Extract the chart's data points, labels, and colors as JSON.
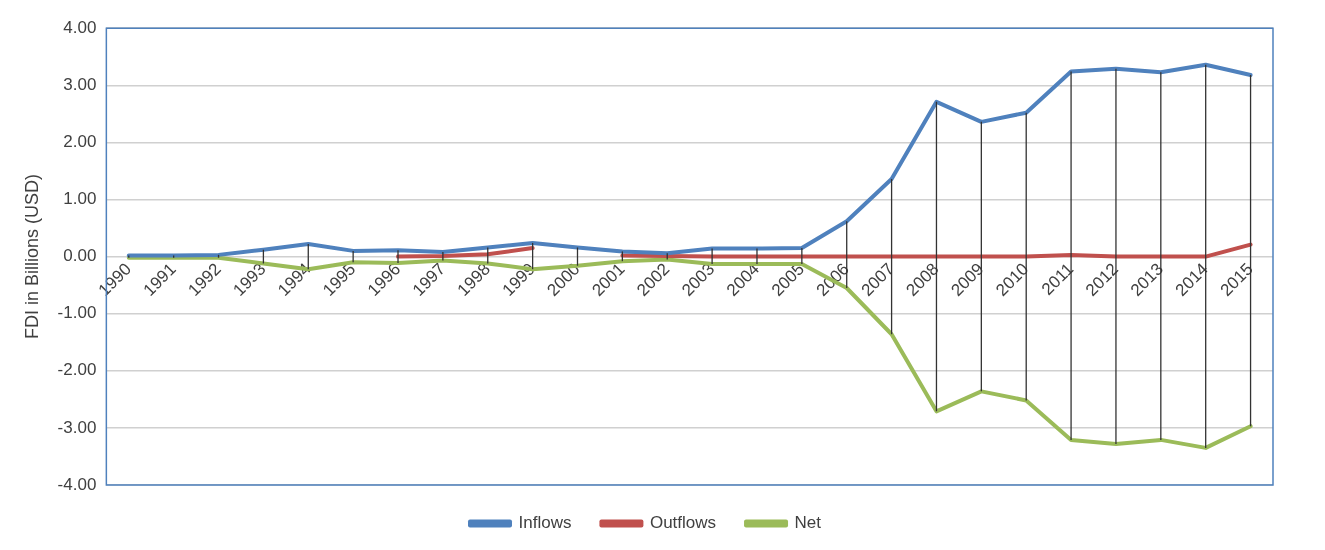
{
  "chart_data": {
    "type": "line",
    "ylabel": "FDI in Billions (USD)",
    "categories": [
      "1990",
      "1991",
      "1992",
      "1993",
      "1994",
      "1995",
      "1996",
      "1997",
      "1998",
      "1999",
      "2000",
      "2001",
      "2002",
      "2003",
      "2004",
      "2005",
      "2006",
      "2007",
      "2008",
      "2009",
      "2010",
      "2011",
      "2012",
      "2013",
      "2014",
      "2015"
    ],
    "series": [
      {
        "name": "Inflows",
        "color": "#4f81bd",
        "values": [
          0.02,
          0.02,
          0.03,
          0.12,
          0.22,
          0.1,
          0.11,
          0.08,
          0.16,
          0.24,
          0.16,
          0.09,
          0.06,
          0.14,
          0.14,
          0.15,
          0.62,
          1.36,
          2.71,
          2.36,
          2.52,
          3.24,
          3.29,
          3.23,
          3.36,
          3.18
        ]
      },
      {
        "name": "Outflows",
        "color": "#c0504d",
        "values": [
          null,
          null,
          null,
          null,
          null,
          null,
          0.0,
          0.01,
          0.04,
          0.15,
          null,
          0.02,
          0.01,
          0.0,
          0.0,
          0.0,
          0.0,
          0.0,
          0.0,
          0.0,
          0.0,
          0.03,
          0.0,
          0.0,
          0.0,
          0.21
        ]
      },
      {
        "name": "Net",
        "color": "#9bbb59",
        "values": [
          -0.02,
          -0.02,
          -0.02,
          -0.12,
          -0.22,
          -0.1,
          -0.11,
          -0.07,
          -0.12,
          -0.22,
          -0.16,
          -0.08,
          -0.05,
          -0.13,
          -0.13,
          -0.13,
          -0.55,
          -1.36,
          -2.71,
          -2.36,
          -2.52,
          -3.21,
          -3.28,
          -3.21,
          -3.35,
          -2.97
        ],
        "errors": [
          [
            -0.02,
            0.02
          ],
          [
            -0.02,
            0.02
          ],
          [
            -0.02,
            0.03
          ],
          [
            -0.12,
            0.12
          ],
          [
            -0.22,
            0.22
          ],
          [
            -0.1,
            0.1
          ],
          [
            -0.11,
            0.11
          ],
          [
            -0.07,
            0.08
          ],
          [
            -0.12,
            0.16
          ],
          [
            -0.22,
            0.24
          ],
          [
            -0.16,
            0.16
          ],
          [
            -0.08,
            0.09
          ],
          [
            -0.05,
            0.06
          ],
          [
            -0.13,
            0.14
          ],
          [
            -0.13,
            0.14
          ],
          [
            -0.13,
            0.15
          ],
          [
            -0.55,
            0.62
          ],
          [
            -1.36,
            1.36
          ],
          [
            -2.71,
            2.71
          ],
          [
            -2.36,
            2.36
          ],
          [
            -2.52,
            2.52
          ],
          [
            -3.21,
            3.24
          ],
          [
            -3.28,
            3.29
          ],
          [
            -3.21,
            3.23
          ],
          [
            -3.35,
            3.36
          ],
          [
            -2.97,
            3.18
          ]
        ]
      }
    ],
    "ylim": [
      -4,
      4
    ],
    "yticks": [
      {
        "value": -4,
        "label": "-4.00"
      },
      {
        "value": -3,
        "label": "-3.00"
      },
      {
        "value": -2,
        "label": "-2.00"
      },
      {
        "value": -1,
        "label": "-1.00"
      },
      {
        "value": 0,
        "label": "0.00"
      },
      {
        "value": 1,
        "label": "1.00"
      },
      {
        "value": 2,
        "label": "2.00"
      },
      {
        "value": 3,
        "label": "3.00"
      },
      {
        "value": 4,
        "label": "4.00"
      }
    ],
    "grid": "y",
    "legend": "bottom",
    "marker": "none",
    "line_style": "solid"
  }
}
